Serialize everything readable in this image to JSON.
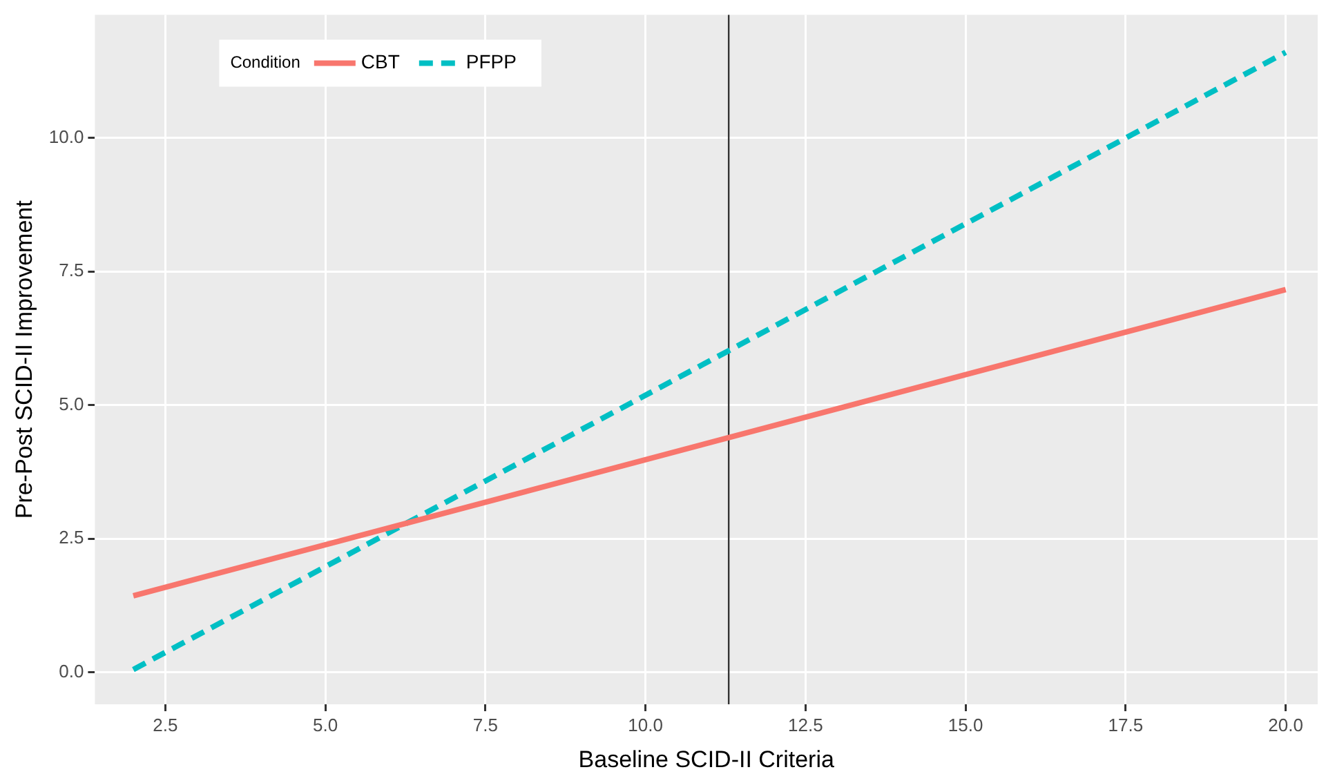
{
  "chart_data": {
    "type": "line",
    "xlabel": "Baseline SCID-II Criteria",
    "ylabel": "Pre-Post SCID-II Improvement",
    "legend_title": "Condition",
    "legend": "top left",
    "grid": true,
    "marker": "none",
    "x": [
      2,
      20
    ],
    "series": [
      {
        "name": "CBT",
        "color": "#f8766d",
        "values": [
          1.43,
          7.16
        ],
        "line_style": "solid"
      },
      {
        "name": "PFPP",
        "color": "#00bfc4",
        "values": [
          0.05,
          11.6
        ],
        "line_style": "dashed"
      }
    ],
    "xlim": [
      1.4,
      20.5
    ],
    "xticks": [
      {
        "value": 2.5,
        "label": "2.5"
      },
      {
        "value": 5,
        "label": "5.0"
      },
      {
        "value": 7.5,
        "label": "7.5"
      },
      {
        "value": 10,
        "label": "10.0"
      },
      {
        "value": 12.5,
        "label": "12.5"
      },
      {
        "value": 15,
        "label": "15.0"
      },
      {
        "value": 17.5,
        "label": "17.5"
      },
      {
        "value": 20,
        "label": "20.0"
      }
    ],
    "ylim": [
      -0.6,
      12.3
    ],
    "yticks": [
      {
        "value": 0,
        "label": "0.0"
      },
      {
        "value": 2.5,
        "label": "2.5"
      },
      {
        "value": 5,
        "label": "5.0"
      },
      {
        "value": 7.5,
        "label": "7.5"
      },
      {
        "value": 10,
        "label": "10.0"
      }
    ],
    "ref_lines": [
      {
        "axis": "x",
        "value": 11.3,
        "color": "#333333"
      }
    ]
  }
}
